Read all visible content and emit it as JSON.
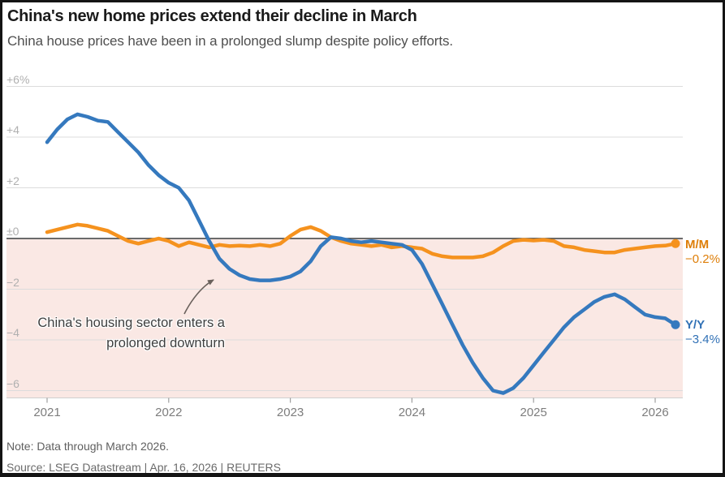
{
  "header": {
    "title": "China's new home prices extend their decline in March",
    "subtitle": "China house prices have been in a prolonged slump despite policy efforts."
  },
  "chart_data": {
    "type": "line",
    "unit": "%",
    "xlim": [
      2020.95,
      2026.25
    ],
    "ylim": [
      -6.5,
      6.3
    ],
    "grid": true,
    "negative_region_color": "#fae8e4",
    "y_ticks": [
      {
        "value": 6,
        "label": "+6%"
      },
      {
        "value": 4,
        "label": "+4"
      },
      {
        "value": 2,
        "label": "+2"
      },
      {
        "value": 0,
        "label": "±0"
      },
      {
        "value": -2,
        "label": "−2"
      },
      {
        "value": -4,
        "label": "−4"
      },
      {
        "value": -6,
        "label": "−6"
      }
    ],
    "x_ticks": [
      {
        "value": 2021,
        "label": "2021"
      },
      {
        "value": 2022,
        "label": "2022"
      },
      {
        "value": 2023,
        "label": "2023"
      },
      {
        "value": 2024,
        "label": "2024"
      },
      {
        "value": 2025,
        "label": "2025"
      },
      {
        "value": 2026,
        "label": "2026"
      }
    ],
    "x": [
      2021.0,
      2021.083,
      2021.167,
      2021.25,
      2021.333,
      2021.417,
      2021.5,
      2021.583,
      2021.667,
      2021.75,
      2021.833,
      2021.917,
      2022.0,
      2022.083,
      2022.167,
      2022.25,
      2022.333,
      2022.417,
      2022.5,
      2022.583,
      2022.667,
      2022.75,
      2022.833,
      2022.917,
      2023.0,
      2023.083,
      2023.167,
      2023.25,
      2023.333,
      2023.417,
      2023.5,
      2023.583,
      2023.667,
      2023.75,
      2023.833,
      2023.917,
      2024.0,
      2024.083,
      2024.167,
      2024.25,
      2024.333,
      2024.417,
      2024.5,
      2024.583,
      2024.667,
      2024.75,
      2024.833,
      2024.917,
      2025.0,
      2025.083,
      2025.167,
      2025.25,
      2025.333,
      2025.417,
      2025.5,
      2025.583,
      2025.667,
      2025.75,
      2025.833,
      2025.917,
      2026.0,
      2026.083,
      2026.167
    ],
    "series": [
      {
        "name": "M/M",
        "color": "#f5921e",
        "end_label": "M/M",
        "end_value": "−0.2%",
        "values": [
          0.25,
          0.35,
          0.45,
          0.55,
          0.5,
          0.4,
          0.3,
          0.1,
          -0.1,
          -0.2,
          -0.1,
          0.0,
          -0.1,
          -0.3,
          -0.15,
          -0.25,
          -0.35,
          -0.25,
          -0.3,
          -0.28,
          -0.3,
          -0.25,
          -0.3,
          -0.2,
          0.1,
          0.35,
          0.45,
          0.3,
          0.05,
          -0.1,
          -0.2,
          -0.25,
          -0.3,
          -0.25,
          -0.35,
          -0.3,
          -0.35,
          -0.4,
          -0.6,
          -0.7,
          -0.75,
          -0.75,
          -0.75,
          -0.7,
          -0.55,
          -0.3,
          -0.1,
          -0.05,
          -0.08,
          -0.05,
          -0.1,
          -0.3,
          -0.35,
          -0.45,
          -0.5,
          -0.55,
          -0.55,
          -0.45,
          -0.4,
          -0.35,
          -0.3,
          -0.28,
          -0.2
        ]
      },
      {
        "name": "Y/Y",
        "color": "#3579be",
        "end_label": "Y/Y",
        "end_value": "−3.4%",
        "values": [
          3.8,
          4.3,
          4.7,
          4.9,
          4.8,
          4.65,
          4.6,
          4.2,
          3.8,
          3.4,
          2.9,
          2.5,
          2.2,
          2.0,
          1.5,
          0.7,
          -0.1,
          -0.8,
          -1.2,
          -1.45,
          -1.6,
          -1.65,
          -1.65,
          -1.6,
          -1.5,
          -1.3,
          -0.9,
          -0.3,
          0.05,
          0.0,
          -0.1,
          -0.15,
          -0.1,
          -0.15,
          -0.2,
          -0.25,
          -0.45,
          -1.0,
          -1.8,
          -2.6,
          -3.4,
          -4.2,
          -4.9,
          -5.5,
          -6.0,
          -6.1,
          -5.9,
          -5.5,
          -5.0,
          -4.5,
          -4.0,
          -3.5,
          -3.1,
          -2.8,
          -2.5,
          -2.3,
          -2.2,
          -2.4,
          -2.7,
          -3.0,
          -3.1,
          -3.15,
          -3.4
        ]
      }
    ],
    "annotation": {
      "line1": "China's housing sector enters a",
      "line2": "prolonged downturn"
    }
  },
  "footer": {
    "note": "Note: Data through March 2026.",
    "source": "Source: LSEG Datastream | Apr. 16, 2026 | REUTERS"
  }
}
